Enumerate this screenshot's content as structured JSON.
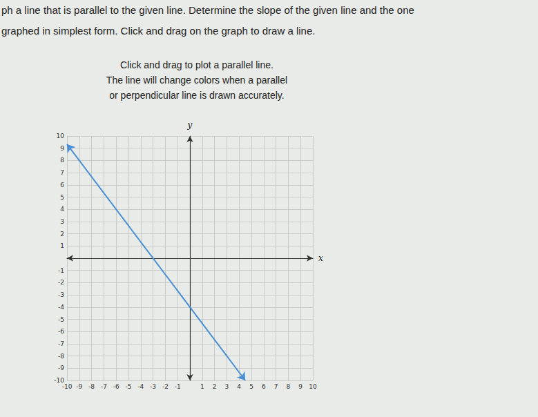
{
  "header": {
    "lines": [
      "ph a line that is parallel to the given line. Determine the slope of the given line and the one",
      "graphed in simplest form. Click and drag on the graph to draw a line."
    ]
  },
  "instructions": [
    "Click and drag to plot a parallel line.",
    "The line will change colors when a parallel",
    "or perpendicular line is drawn accurately."
  ],
  "chart_data": {
    "type": "line",
    "x_label": "x",
    "y_label": "y",
    "x": [
      -10,
      4.5
    ],
    "values": [
      9.33,
      -10
    ],
    "color": "#4a8fd6",
    "marker": "arrow",
    "xlim": [
      -10,
      10
    ],
    "ylim": [
      -10,
      10
    ],
    "xticks": [
      -10,
      -9,
      -8,
      -7,
      -6,
      -5,
      -4,
      -3,
      -2,
      -1,
      1,
      2,
      3,
      4,
      5,
      6,
      7,
      8,
      9,
      10
    ],
    "yticks": [
      -10,
      -9,
      -8,
      -7,
      -6,
      -5,
      -4,
      -3,
      -2,
      -1,
      1,
      2,
      3,
      4,
      5,
      6,
      7,
      8,
      9,
      10
    ],
    "grid": true
  }
}
